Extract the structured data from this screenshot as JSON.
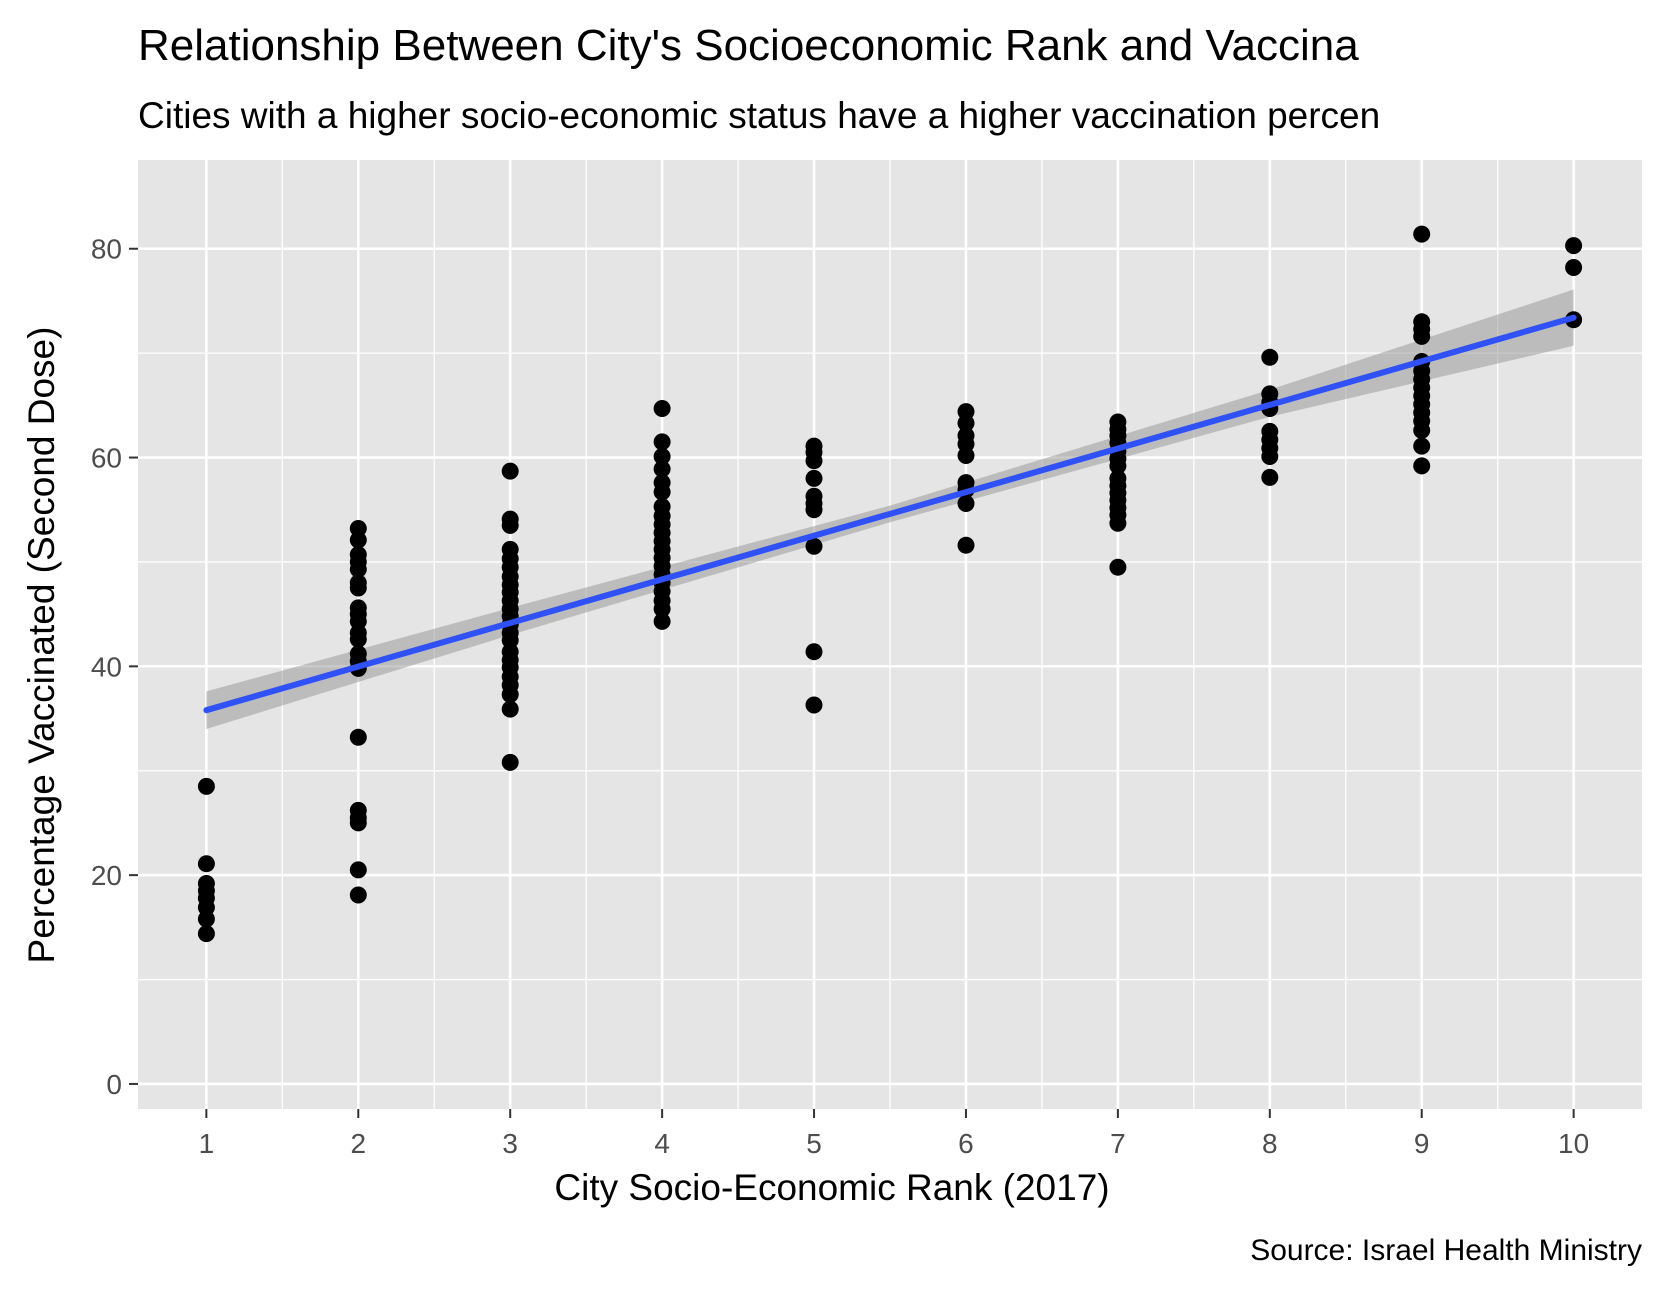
{
  "chart_data": {
    "type": "scatter",
    "title": "Relationship Between City's Socioeconomic Rank and Vaccina",
    "subtitle": "Cities with a higher socio-economic status have a higher vaccination percen",
    "xlabel": "City Socio-Economic Rank (2017)",
    "ylabel": "Percentage Vaccinated (Second Dose)",
    "caption": "Source: Israel Health Ministry",
    "xlim": [
      0.55,
      10.45
    ],
    "ylim": [
      -2.4,
      88.5
    ],
    "x_ticks": [
      1,
      2,
      3,
      4,
      5,
      6,
      7,
      8,
      9,
      10
    ],
    "x_tick_labels": [
      "1",
      "2",
      "3",
      "4",
      "5",
      "6",
      "7",
      "8",
      "9",
      "10"
    ],
    "y_ticks": [
      0,
      20,
      40,
      60,
      80
    ],
    "y_tick_labels": [
      "0",
      "20",
      "40",
      "60",
      "80"
    ],
    "grid": true,
    "colors": {
      "panel": "#e5e5e5",
      "grid": "#ffffff",
      "points": "#000000",
      "fit_line": "#3050f8",
      "confidence_band": "#9a9a9a"
    },
    "points": [
      {
        "x": 1,
        "y": 28.5
      },
      {
        "x": 1,
        "y": 21.1
      },
      {
        "x": 1,
        "y": 19.2
      },
      {
        "x": 1,
        "y": 18.5
      },
      {
        "x": 1,
        "y": 17.8
      },
      {
        "x": 1,
        "y": 16.9
      },
      {
        "x": 1,
        "y": 15.8
      },
      {
        "x": 1,
        "y": 14.4
      },
      {
        "x": 2,
        "y": 53.2
      },
      {
        "x": 2,
        "y": 52.1
      },
      {
        "x": 2,
        "y": 50.7
      },
      {
        "x": 2,
        "y": 50.0
      },
      {
        "x": 2,
        "y": 49.3
      },
      {
        "x": 2,
        "y": 48.0
      },
      {
        "x": 2,
        "y": 47.5
      },
      {
        "x": 2,
        "y": 45.6
      },
      {
        "x": 2,
        "y": 45.0
      },
      {
        "x": 2,
        "y": 44.3
      },
      {
        "x": 2,
        "y": 43.2
      },
      {
        "x": 2,
        "y": 42.6
      },
      {
        "x": 2,
        "y": 41.2
      },
      {
        "x": 2,
        "y": 40.5
      },
      {
        "x": 2,
        "y": 39.8
      },
      {
        "x": 2,
        "y": 33.2
      },
      {
        "x": 2,
        "y": 26.2
      },
      {
        "x": 2,
        "y": 25.5
      },
      {
        "x": 2,
        "y": 25.0
      },
      {
        "x": 2,
        "y": 20.5
      },
      {
        "x": 2,
        "y": 18.1
      },
      {
        "x": 3,
        "y": 58.7
      },
      {
        "x": 3,
        "y": 54.1
      },
      {
        "x": 3,
        "y": 53.5
      },
      {
        "x": 3,
        "y": 51.2
      },
      {
        "x": 3,
        "y": 50.3
      },
      {
        "x": 3,
        "y": 49.5
      },
      {
        "x": 3,
        "y": 48.6
      },
      {
        "x": 3,
        "y": 47.8
      },
      {
        "x": 3,
        "y": 47.1
      },
      {
        "x": 3,
        "y": 46.3
      },
      {
        "x": 3,
        "y": 45.5
      },
      {
        "x": 3,
        "y": 44.8
      },
      {
        "x": 3,
        "y": 44.0
      },
      {
        "x": 3,
        "y": 43.2
      },
      {
        "x": 3,
        "y": 42.5
      },
      {
        "x": 3,
        "y": 41.4
      },
      {
        "x": 3,
        "y": 40.6
      },
      {
        "x": 3,
        "y": 39.9
      },
      {
        "x": 3,
        "y": 39.0
      },
      {
        "x": 3,
        "y": 38.2
      },
      {
        "x": 3,
        "y": 37.3
      },
      {
        "x": 3,
        "y": 35.9
      },
      {
        "x": 3,
        "y": 30.8
      },
      {
        "x": 4,
        "y": 64.7
      },
      {
        "x": 4,
        "y": 61.5
      },
      {
        "x": 4,
        "y": 60.1
      },
      {
        "x": 4,
        "y": 58.9
      },
      {
        "x": 4,
        "y": 57.6
      },
      {
        "x": 4,
        "y": 56.7
      },
      {
        "x": 4,
        "y": 55.3
      },
      {
        "x": 4,
        "y": 54.4
      },
      {
        "x": 4,
        "y": 53.6
      },
      {
        "x": 4,
        "y": 52.8
      },
      {
        "x": 4,
        "y": 52.0
      },
      {
        "x": 4,
        "y": 51.2
      },
      {
        "x": 4,
        "y": 50.4
      },
      {
        "x": 4,
        "y": 49.6
      },
      {
        "x": 4,
        "y": 48.8
      },
      {
        "x": 4,
        "y": 48.0
      },
      {
        "x": 4,
        "y": 47.2
      },
      {
        "x": 4,
        "y": 46.3
      },
      {
        "x": 4,
        "y": 45.5
      },
      {
        "x": 4,
        "y": 44.3
      },
      {
        "x": 5,
        "y": 61.1
      },
      {
        "x": 5,
        "y": 60.5
      },
      {
        "x": 5,
        "y": 59.7
      },
      {
        "x": 5,
        "y": 58.0
      },
      {
        "x": 5,
        "y": 56.3
      },
      {
        "x": 5,
        "y": 55.6
      },
      {
        "x": 5,
        "y": 55.0
      },
      {
        "x": 5,
        "y": 51.5
      },
      {
        "x": 5,
        "y": 41.4
      },
      {
        "x": 5,
        "y": 36.3
      },
      {
        "x": 6,
        "y": 64.4
      },
      {
        "x": 6,
        "y": 63.3
      },
      {
        "x": 6,
        "y": 62.1
      },
      {
        "x": 6,
        "y": 61.3
      },
      {
        "x": 6,
        "y": 60.2
      },
      {
        "x": 6,
        "y": 57.6
      },
      {
        "x": 6,
        "y": 56.9
      },
      {
        "x": 6,
        "y": 55.6
      },
      {
        "x": 6,
        "y": 51.6
      },
      {
        "x": 7,
        "y": 63.4
      },
      {
        "x": 7,
        "y": 62.7
      },
      {
        "x": 7,
        "y": 62.1
      },
      {
        "x": 7,
        "y": 61.4
      },
      {
        "x": 7,
        "y": 60.6
      },
      {
        "x": 7,
        "y": 59.9
      },
      {
        "x": 7,
        "y": 59.2
      },
      {
        "x": 7,
        "y": 58.0
      },
      {
        "x": 7,
        "y": 57.3
      },
      {
        "x": 7,
        "y": 56.6
      },
      {
        "x": 7,
        "y": 55.9
      },
      {
        "x": 7,
        "y": 55.2
      },
      {
        "x": 7,
        "y": 54.5
      },
      {
        "x": 7,
        "y": 53.7
      },
      {
        "x": 7,
        "y": 49.5
      },
      {
        "x": 8,
        "y": 69.6
      },
      {
        "x": 8,
        "y": 66.1
      },
      {
        "x": 8,
        "y": 65.3
      },
      {
        "x": 8,
        "y": 64.7
      },
      {
        "x": 8,
        "y": 62.5
      },
      {
        "x": 8,
        "y": 61.7
      },
      {
        "x": 8,
        "y": 60.9
      },
      {
        "x": 8,
        "y": 60.1
      },
      {
        "x": 8,
        "y": 58.1
      },
      {
        "x": 9,
        "y": 81.4
      },
      {
        "x": 9,
        "y": 73.0
      },
      {
        "x": 9,
        "y": 72.3
      },
      {
        "x": 9,
        "y": 71.6
      },
      {
        "x": 9,
        "y": 69.2
      },
      {
        "x": 9,
        "y": 68.3
      },
      {
        "x": 9,
        "y": 67.5
      },
      {
        "x": 9,
        "y": 66.7
      },
      {
        "x": 9,
        "y": 65.9
      },
      {
        "x": 9,
        "y": 65.1
      },
      {
        "x": 9,
        "y": 64.3
      },
      {
        "x": 9,
        "y": 63.5
      },
      {
        "x": 9,
        "y": 62.6
      },
      {
        "x": 9,
        "y": 61.1
      },
      {
        "x": 9,
        "y": 59.2
      },
      {
        "x": 10,
        "y": 80.3
      },
      {
        "x": 10,
        "y": 78.2
      },
      {
        "x": 10,
        "y": 73.2
      }
    ],
    "fit_line": {
      "x": [
        1,
        10
      ],
      "y": [
        35.8,
        73.4
      ]
    },
    "confidence_band": {
      "x": [
        1,
        3,
        5.5,
        8,
        10
      ],
      "lower": [
        34.0,
        43.0,
        53.8,
        63.9,
        70.7
      ],
      "upper": [
        37.6,
        45.6,
        55.4,
        66.5,
        76.1
      ]
    }
  }
}
